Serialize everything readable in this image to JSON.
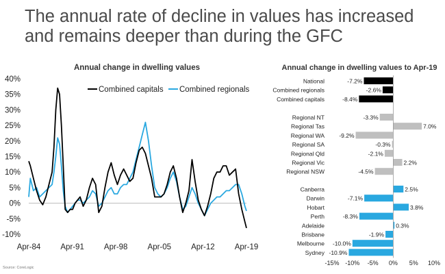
{
  "headline": "The annual rate of decline in values has increased and remains deeper than during the GFC",
  "source": "Source: CoreLogic",
  "chart_data": [
    {
      "type": "line",
      "title": "Annual change in dwelling values",
      "x_tick_labels": [
        "Apr-84",
        "Apr-91",
        "Apr-98",
        "Apr-05",
        "Apr-12",
        "Apr-19"
      ],
      "y_tick_labels": [
        "40%",
        "35%",
        "30%",
        "25%",
        "20%",
        "15%",
        "10%",
        "5%",
        "0%",
        "-5%",
        "-10%"
      ],
      "ylim": [
        -10,
        40
      ],
      "xlim": [
        1984.25,
        2019.25
      ],
      "legend_position": "top-right",
      "series": [
        {
          "name": "Combined capitals",
          "color": "#000000",
          "x": [
            1984.25,
            1984.5,
            1985.0,
            1985.5,
            1986.0,
            1986.5,
            1987.0,
            1987.5,
            1988.0,
            1988.3,
            1988.6,
            1988.9,
            1989.2,
            1989.5,
            1989.8,
            1990.1,
            1990.5,
            1990.9,
            1991.3,
            1991.7,
            1992.1,
            1992.5,
            1993.0,
            1993.5,
            1994.0,
            1994.5,
            1995.0,
            1995.5,
            1996.0,
            1996.5,
            1997.0,
            1997.5,
            1998.0,
            1998.5,
            1999.0,
            1999.5,
            2000.0,
            2000.5,
            2001.0,
            2001.5,
            2002.0,
            2002.5,
            2003.0,
            2003.5,
            2004.0,
            2004.5,
            2005.0,
            2005.5,
            2006.0,
            2006.5,
            2007.0,
            2007.5,
            2008.0,
            2008.5,
            2009.0,
            2009.5,
            2010.0,
            2010.5,
            2011.0,
            2011.5,
            2012.0,
            2012.5,
            2013.0,
            2013.5,
            2014.0,
            2014.5,
            2015.0,
            2015.5,
            2016.0,
            2016.5,
            2017.0,
            2017.5,
            2018.0,
            2018.5,
            2019.0,
            2019.25
          ],
          "values": [
            13.5,
            12,
            8,
            4,
            1,
            -0.5,
            2,
            6,
            10,
            18,
            30,
            37,
            35,
            25,
            12,
            -2,
            -3,
            -2,
            -2,
            0,
            1,
            2,
            -1,
            1,
            5,
            8,
            6,
            -3,
            -1,
            5,
            10,
            13,
            9,
            6,
            9,
            11,
            9,
            7,
            8,
            13,
            17,
            18,
            16,
            12,
            8,
            2,
            2,
            2,
            3,
            6,
            10,
            12,
            8,
            2,
            -3,
            0,
            4,
            14,
            7,
            1,
            -2,
            -4,
            -1,
            3,
            8,
            10,
            10,
            12,
            12,
            9,
            10,
            11,
            3,
            -2,
            -6,
            -8
          ]
        },
        {
          "name": "Combined regionals",
          "color": "#29a8e0",
          "x": [
            1984.25,
            1984.5,
            1985.0,
            1985.5,
            1986.0,
            1986.5,
            1987.0,
            1987.5,
            1988.0,
            1988.3,
            1988.6,
            1988.9,
            1989.2,
            1989.5,
            1989.8,
            1990.1,
            1990.5,
            1990.9,
            1991.3,
            1991.7,
            1992.1,
            1992.5,
            1993.0,
            1993.5,
            1994.0,
            1994.5,
            1995.0,
            1995.5,
            1996.0,
            1996.5,
            1997.0,
            1997.5,
            1998.0,
            1998.5,
            1999.0,
            1999.5,
            2000.0,
            2000.5,
            2001.0,
            2001.5,
            2002.0,
            2002.5,
            2003.0,
            2003.5,
            2004.0,
            2004.5,
            2005.0,
            2005.5,
            2006.0,
            2006.5,
            2007.0,
            2007.5,
            2008.0,
            2008.5,
            2009.0,
            2009.5,
            2010.0,
            2010.5,
            2011.0,
            2011.5,
            2012.0,
            2012.5,
            2013.0,
            2013.5,
            2014.0,
            2014.5,
            2015.0,
            2015.5,
            2016.0,
            2016.5,
            2017.0,
            2017.5,
            2018.0,
            2018.5,
            2019.0,
            2019.25
          ],
          "values": [
            2,
            8,
            4,
            5,
            2,
            3,
            4,
            5,
            6,
            10,
            15,
            21,
            19,
            12,
            4,
            -1,
            -3,
            -2,
            -1,
            0,
            1,
            1,
            0,
            1,
            2,
            4,
            3,
            -1,
            0,
            2,
            4,
            5,
            3,
            3,
            5,
            6,
            6,
            8,
            10,
            14,
            18,
            22,
            26,
            20,
            12,
            5,
            3,
            2,
            3,
            5,
            8,
            10,
            7,
            2,
            -2,
            -1,
            2,
            5,
            3,
            0,
            -2,
            -4,
            -2,
            0,
            1,
            2,
            2,
            3,
            4,
            4,
            5,
            6,
            6,
            3,
            -1,
            -2.5
          ]
        }
      ]
    },
    {
      "type": "bar",
      "orientation": "horizontal",
      "title": "Annual change in dwelling values to Apr-19",
      "xlim": [
        -15,
        10
      ],
      "x_tick_labels": [
        "-15%",
        "-10%",
        "-5%",
        "0%",
        "5%",
        "10%"
      ],
      "colors": {
        "national": "#000000",
        "regional": "#bfbfbf",
        "capital": "#29a8e0"
      },
      "groups": [
        {
          "key": "national",
          "rows": [
            {
              "label": "National",
              "value": -7.2,
              "value_label": "-7.2%"
            },
            {
              "label": "Combined regionals",
              "value": -2.6,
              "value_label": "-2.6%"
            },
            {
              "label": "Combined capitals",
              "value": -8.4,
              "value_label": "-8.4%"
            }
          ]
        },
        {
          "key": "regional",
          "rows": [
            {
              "label": "Regional NT",
              "value": -3.3,
              "value_label": "-3.3%"
            },
            {
              "label": "Regional Tas",
              "value": 7.0,
              "value_label": "7.0%"
            },
            {
              "label": "Regional WA",
              "value": -9.2,
              "value_label": "-9.2%"
            },
            {
              "label": "Regional SA",
              "value": -0.3,
              "value_label": "-0.3%"
            },
            {
              "label": "Regional Qld",
              "value": -2.1,
              "value_label": "-2.1%"
            },
            {
              "label": "Regional Vic",
              "value": 2.2,
              "value_label": "2.2%"
            },
            {
              "label": "Regional NSW",
              "value": -4.5,
              "value_label": "-4.5%"
            }
          ]
        },
        {
          "key": "capital",
          "rows": [
            {
              "label": "Canberra",
              "value": 2.5,
              "value_label": "2.5%"
            },
            {
              "label": "Darwin",
              "value": -7.1,
              "value_label": "-7.1%"
            },
            {
              "label": "Hobart",
              "value": 3.8,
              "value_label": "3.8%"
            },
            {
              "label": "Perth",
              "value": -8.3,
              "value_label": "-8.3%"
            },
            {
              "label": "Adelaide",
              "value": 0.3,
              "value_label": "0.3%"
            },
            {
              "label": "Brisbane",
              "value": -1.9,
              "value_label": "-1.9%"
            },
            {
              "label": "Melbourne",
              "value": -10.0,
              "value_label": "-10.0%"
            },
            {
              "label": "Sydney",
              "value": -10.9,
              "value_label": "-10.9%"
            }
          ]
        }
      ]
    }
  ]
}
